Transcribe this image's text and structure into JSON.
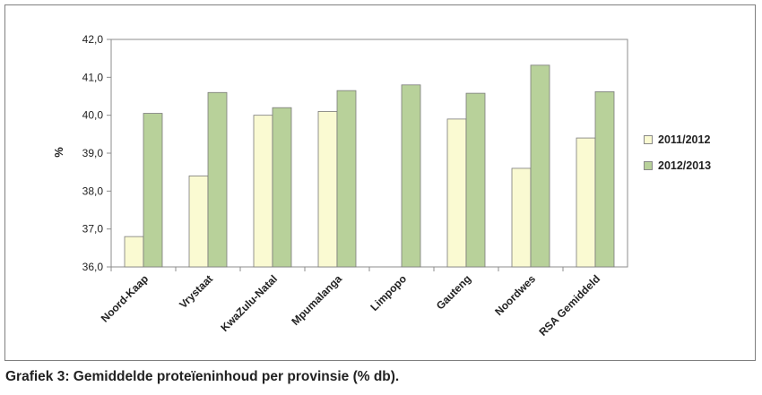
{
  "chart_data": {
    "type": "bar",
    "title": "",
    "xlabel": "",
    "ylabel": "%",
    "ylim": [
      36.0,
      42.0
    ],
    "yticks": [
      "36,0",
      "37,0",
      "38,0",
      "39,0",
      "40,0",
      "41,0",
      "42,0"
    ],
    "grid": false,
    "legend_position": "right",
    "categories": [
      "Noord-Kaap",
      "Vrystaat",
      "KwaZulu-Natal",
      "Mpumalanga",
      "Limpopo",
      "Gauteng",
      "Noordwes",
      "RSA Gemiddeld"
    ],
    "series": [
      {
        "name": "2011/2012",
        "color": "#fafad2",
        "values": [
          36.8,
          38.4,
          40.0,
          40.1,
          null,
          39.9,
          38.6,
          39.4
        ]
      },
      {
        "name": "2012/2013",
        "color": "#b8d19a",
        "values": [
          40.05,
          40.6,
          40.2,
          40.65,
          40.8,
          40.58,
          41.32,
          40.62
        ]
      }
    ]
  },
  "caption": "Grafiek 3: Gemiddelde proteïeninhoud per provinsie (% db)."
}
